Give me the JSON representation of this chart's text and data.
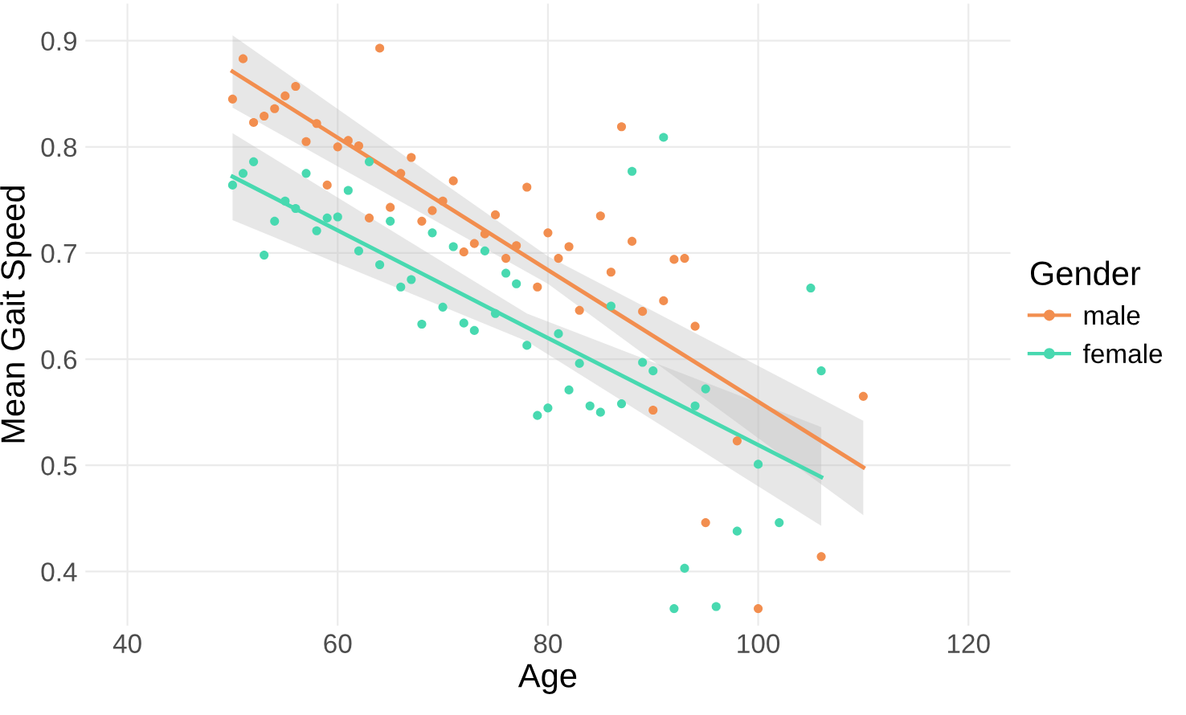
{
  "chart_data": {
    "type": "scatter",
    "xlabel": "Age",
    "ylabel": "Mean Gait Speed",
    "legend_title": "Gender",
    "legend": "right",
    "grid": true,
    "marker": "circle",
    "xlim": [
      36,
      124
    ],
    "ylim": [
      0.349,
      0.935
    ],
    "xticks": [
      40,
      60,
      80,
      100,
      120
    ],
    "yticks": [
      0.4,
      0.5,
      0.6,
      0.7,
      0.8,
      0.9
    ],
    "series": [
      {
        "name": "male",
        "color": "#f28e4f",
        "x": [
          50,
          51,
          52,
          53,
          54,
          55,
          56,
          57,
          58,
          59,
          60,
          61,
          62,
          63,
          64,
          65,
          66,
          67,
          68,
          69,
          70,
          71,
          72,
          73,
          74,
          75,
          76,
          77,
          78,
          79,
          80,
          81,
          82,
          83,
          85,
          86,
          87,
          88,
          89,
          90,
          91,
          92,
          93,
          94,
          95,
          98,
          100,
          106,
          110
        ],
        "values": [
          0.845,
          0.883,
          0.823,
          0.829,
          0.836,
          0.848,
          0.857,
          0.805,
          0.822,
          0.764,
          0.8,
          0.806,
          0.801,
          0.733,
          0.893,
          0.743,
          0.775,
          0.79,
          0.73,
          0.74,
          0.749,
          0.768,
          0.701,
          0.709,
          0.718,
          0.736,
          0.695,
          0.707,
          0.762,
          0.668,
          0.719,
          0.695,
          0.706,
          0.646,
          0.735,
          0.682,
          0.819,
          0.711,
          0.645,
          0.552,
          0.655,
          0.694,
          0.695,
          0.631,
          0.446,
          0.523,
          0.365,
          0.414,
          0.565
        ]
      },
      {
        "name": "female",
        "color": "#48d9b0",
        "x": [
          50,
          51,
          52,
          53,
          54,
          55,
          56,
          57,
          58,
          59,
          60,
          61,
          62,
          63,
          64,
          65,
          66,
          67,
          68,
          69,
          70,
          71,
          72,
          73,
          74,
          75,
          76,
          77,
          78,
          79,
          80,
          81,
          82,
          83,
          84,
          85,
          86,
          87,
          88,
          89,
          90,
          91,
          92,
          93,
          94,
          95,
          96,
          98,
          100,
          102,
          105,
          106
        ],
        "values": [
          0.764,
          0.775,
          0.786,
          0.698,
          0.73,
          0.749,
          0.742,
          0.775,
          0.721,
          0.733,
          0.734,
          0.759,
          0.702,
          0.786,
          0.689,
          0.73,
          0.668,
          0.675,
          0.633,
          0.719,
          0.649,
          0.706,
          0.634,
          0.627,
          0.702,
          0.643,
          0.681,
          0.671,
          0.613,
          0.547,
          0.554,
          0.624,
          0.571,
          0.596,
          0.556,
          0.55,
          0.65,
          0.558,
          0.777,
          0.597,
          0.589,
          0.809,
          0.365,
          0.403,
          0.556,
          0.572,
          0.367,
          0.438,
          0.501,
          0.446,
          0.667,
          0.589
        ]
      },
      {
        "type": "line",
        "marker": "none",
        "color": "#f28e4f",
        "x": [
          50,
          80,
          110
        ],
        "values": [
          0.871,
          0.684,
          0.498
        ],
        "lower": [
          0.837,
          0.671,
          0.453
        ],
        "upper": [
          0.905,
          0.697,
          0.542
        ]
      },
      {
        "type": "line",
        "marker": "none",
        "color": "#48d9b0",
        "x": [
          50,
          78,
          106
        ],
        "values": [
          0.772,
          0.63,
          0.489
        ],
        "lower": [
          0.731,
          0.617,
          0.443
        ],
        "upper": [
          0.813,
          0.643,
          0.536
        ]
      }
    ]
  }
}
